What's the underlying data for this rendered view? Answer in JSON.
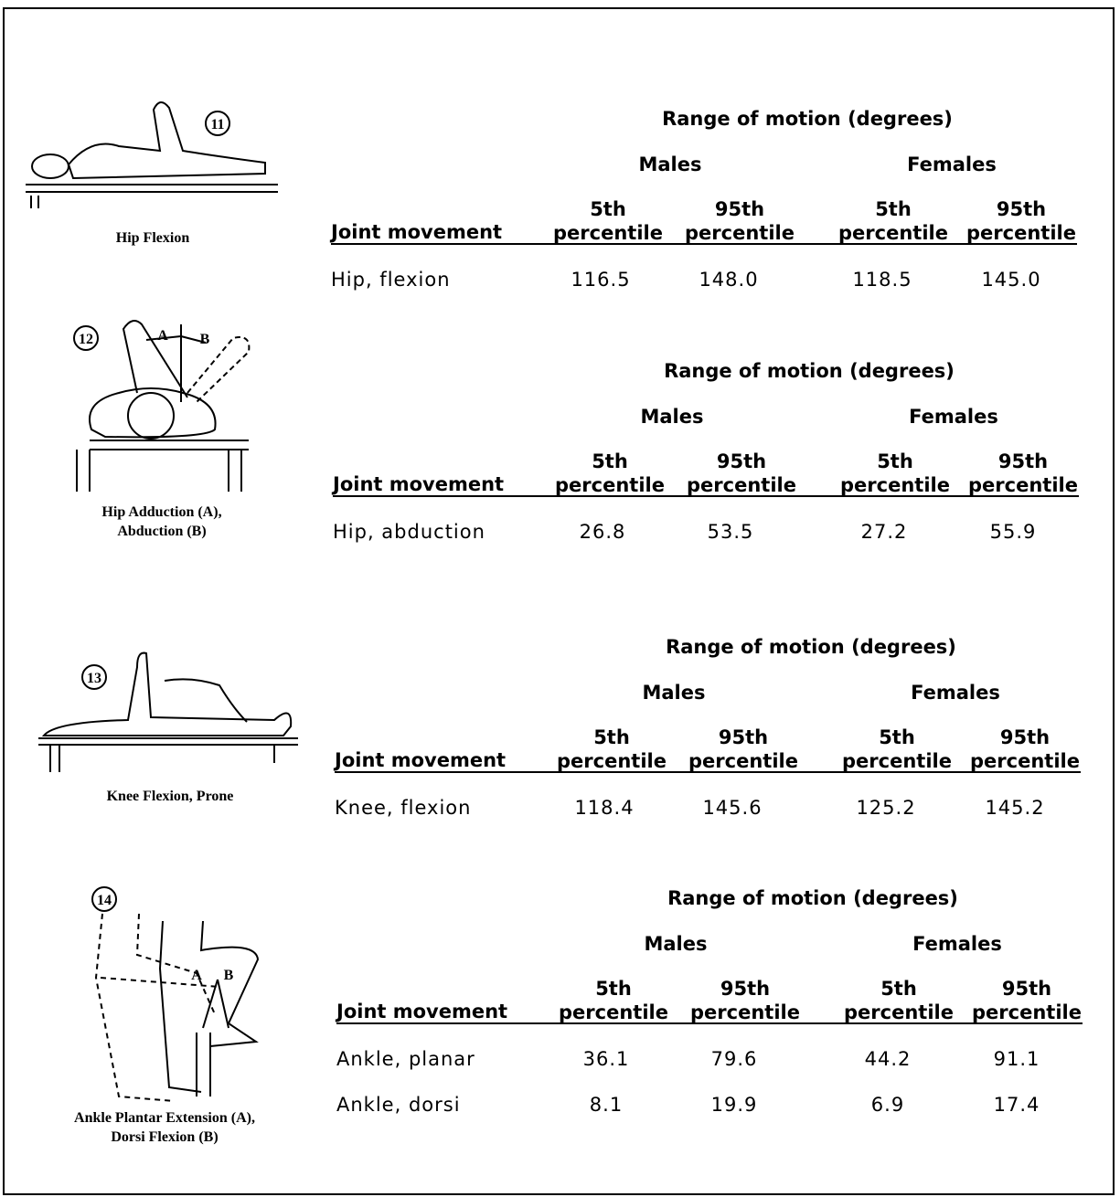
{
  "sections": [
    {
      "figure": {
        "number": "11",
        "caption": [
          "Hip Flexion"
        ],
        "labels": []
      },
      "table": {
        "title": "Range of motion (degrees)",
        "groups": [
          "Males",
          "Females"
        ],
        "columns": [
          "Joint movement",
          "5th percentile",
          "95th percentile",
          "5th percentile",
          "95th percentile"
        ],
        "rows": [
          [
            "Hip, flexion",
            "116.5",
            "148.0",
            "118.5",
            "145.0"
          ]
        ]
      }
    },
    {
      "figure": {
        "number": "12",
        "caption": [
          "Hip Adduction (A),",
          "Abduction (B)"
        ],
        "labels": [
          "A",
          "B"
        ]
      },
      "table": {
        "title": "Range of motion (degrees)",
        "groups": [
          "Males",
          "Females"
        ],
        "columns": [
          "Joint movement",
          "5th percentile",
          "95th percentile",
          "5th percentile",
          "95th percentile"
        ],
        "rows": [
          [
            "Hip, abduction",
            "26.8",
            "53.5",
            "27.2",
            "55.9"
          ]
        ]
      }
    },
    {
      "figure": {
        "number": "13",
        "caption": [
          "Knee Flexion, Prone"
        ],
        "labels": []
      },
      "table": {
        "title": "Range of motion (degrees)",
        "groups": [
          "Males",
          "Females"
        ],
        "columns": [
          "Joint movement",
          "5th percentile",
          "95th percentile",
          "5th percentile",
          "95th percentile"
        ],
        "rows": [
          [
            "Knee, flexion",
            "118.4",
            "145.6",
            "125.2",
            "145.2"
          ]
        ]
      }
    },
    {
      "figure": {
        "number": "14",
        "caption": [
          "Ankle Plantar Extension (A),",
          "Dorsi Flexion (B)"
        ],
        "labels": [
          "A",
          "B"
        ]
      },
      "table": {
        "title": "Range of motion (degrees)",
        "groups": [
          "Males",
          "Females"
        ],
        "columns": [
          "Joint movement",
          "5th percentile",
          "95th percentile",
          "5th percentile",
          "95th percentile"
        ],
        "rows": [
          [
            "Ankle, planar",
            "36.1",
            "79.6",
            "44.2",
            "91.1"
          ],
          [
            "Ankle, dorsi",
            "8.1",
            "19.9",
            "6.9",
            "17.4"
          ]
        ]
      }
    }
  ]
}
